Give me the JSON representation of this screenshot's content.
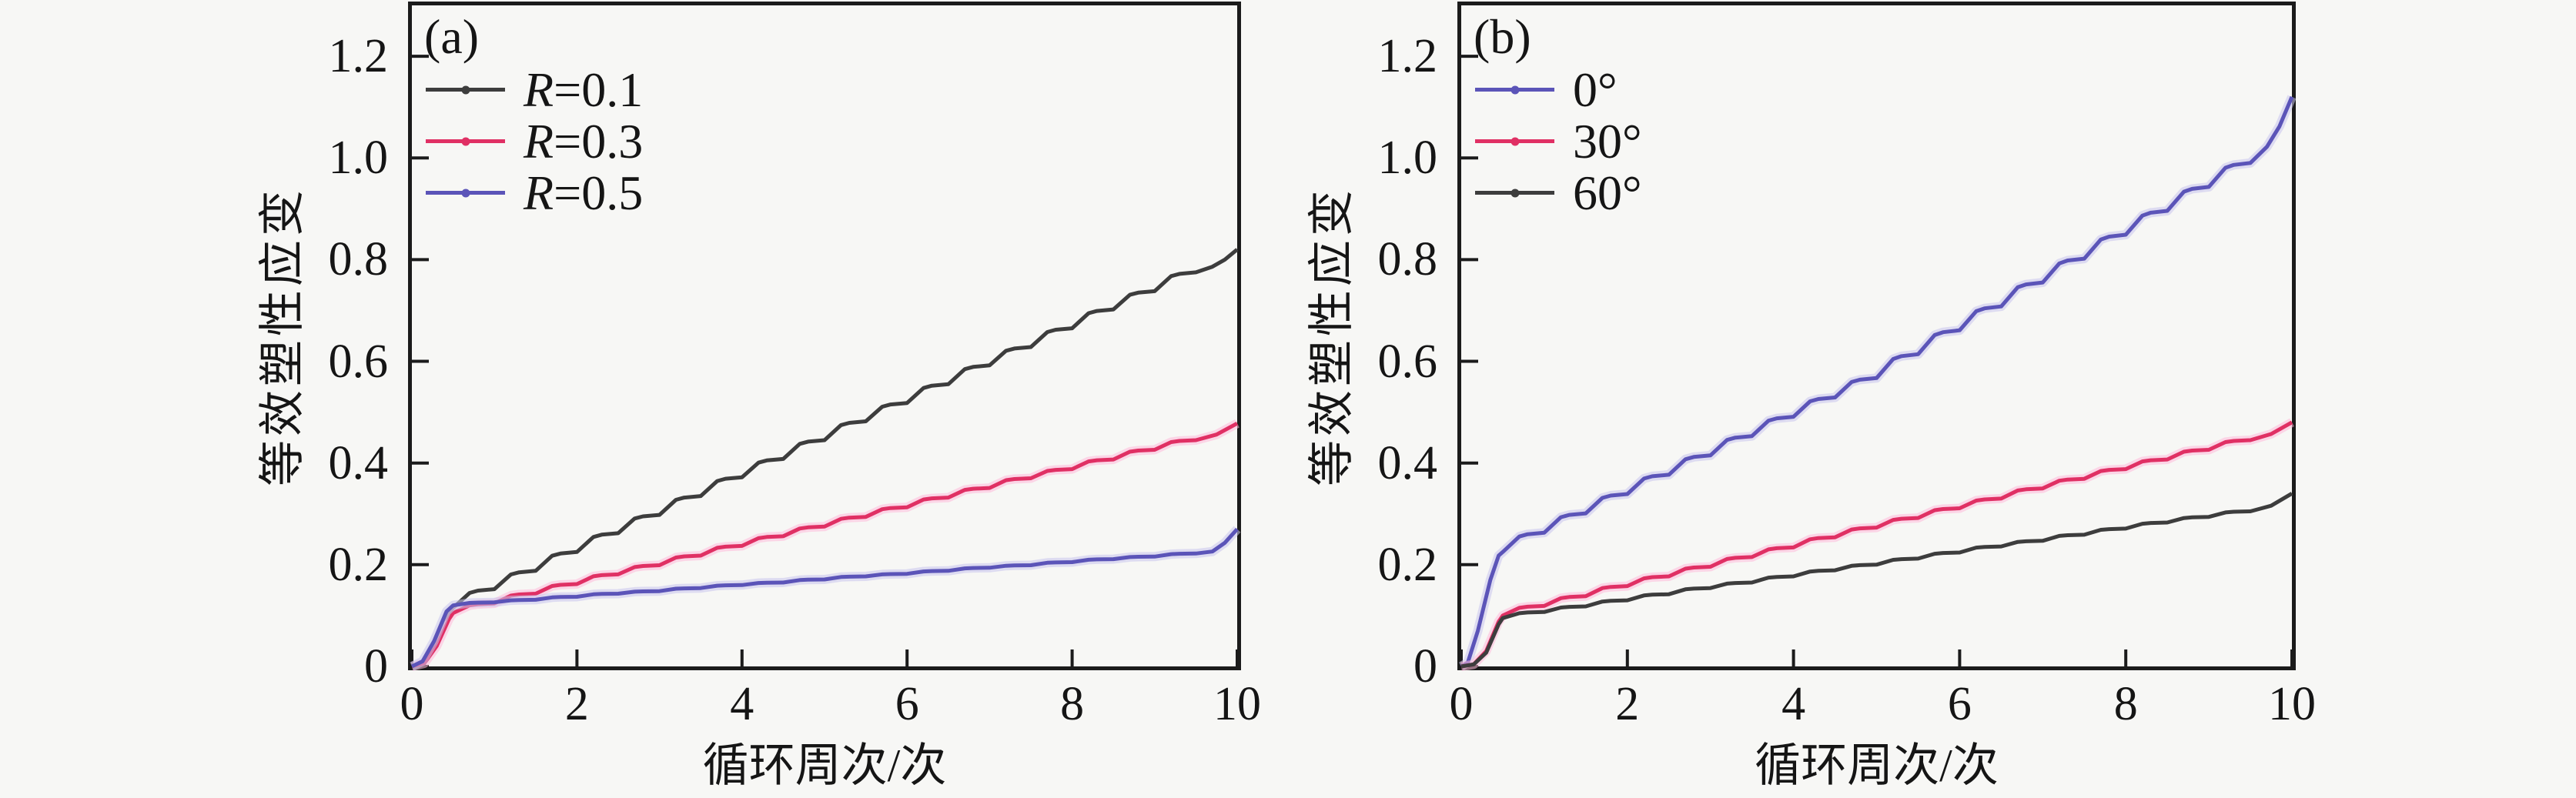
{
  "figure": {
    "background": "#f7f7f5",
    "text_color": "#151515"
  },
  "chart_data": [
    {
      "id": "a",
      "type": "line",
      "panel_label": "(a)",
      "xlabel": "循环周次/次",
      "ylabel": "等效塑性应变",
      "xlim": [
        0,
        10
      ],
      "ylim": [
        0,
        1.3
      ],
      "xticks": [
        0,
        2,
        4,
        6,
        8,
        10
      ],
      "ytick_values": [
        0,
        0.2,
        0.4,
        0.6,
        0.8,
        1.0,
        1.2
      ],
      "ytick_labels": [
        "0",
        "0.2",
        "0.4",
        "0.6",
        "0.8",
        "1.0",
        "1.2"
      ],
      "axis_color": "#1b1b1b",
      "tick_length": 22,
      "legend_position": "upper-left",
      "grid": false,
      "series": [
        {
          "name": "R=0.1",
          "legend": {
            "var": "R",
            "rest": "=0.1"
          },
          "color": "#3d3d3d",
          "halo": "",
          "rise": [
            [
              0,
              0
            ],
            [
              0.12,
              0.008
            ],
            [
              0.25,
              0.04
            ],
            [
              0.38,
              0.09
            ],
            [
              0.5,
              0.115
            ]
          ],
          "anchors": [
            [
              0.5,
              0.115
            ],
            [
              1,
              0.152
            ],
            [
              1.5,
              0.188
            ],
            [
              2,
              0.225
            ],
            [
              2.5,
              0.262
            ],
            [
              3,
              0.298
            ],
            [
              3.5,
              0.335
            ],
            [
              4,
              0.372
            ],
            [
              4.5,
              0.408
            ],
            [
              5,
              0.445
            ],
            [
              5.5,
              0.482
            ],
            [
              6,
              0.518
            ],
            [
              6.5,
              0.555
            ],
            [
              7,
              0.592
            ],
            [
              7.5,
              0.628
            ],
            [
              8,
              0.665
            ],
            [
              8.5,
              0.702
            ],
            [
              9,
              0.738
            ],
            [
              9.5,
              0.775
            ]
          ],
          "final": [
            [
              9.7,
              0.786
            ],
            [
              9.85,
              0.8
            ],
            [
              10,
              0.82
            ]
          ]
        },
        {
          "name": "R=0.3",
          "legend": {
            "var": "R",
            "rest": "=0.3"
          },
          "color": "#e03064",
          "halo": "#ffb9d8",
          "rise": [
            [
              0,
              0
            ],
            [
              0.15,
              0.006
            ],
            [
              0.3,
              0.04
            ],
            [
              0.45,
              0.093
            ],
            [
              0.5,
              0.105
            ]
          ],
          "anchors": [
            [
              0.5,
              0.105
            ],
            [
              1,
              0.124
            ],
            [
              1.5,
              0.143
            ],
            [
              2,
              0.162
            ],
            [
              2.5,
              0.181
            ],
            [
              3,
              0.199
            ],
            [
              3.5,
              0.218
            ],
            [
              4,
              0.237
            ],
            [
              4.5,
              0.256
            ],
            [
              5,
              0.275
            ],
            [
              5.5,
              0.294
            ],
            [
              6,
              0.313
            ],
            [
              6.5,
              0.332
            ],
            [
              7,
              0.351
            ],
            [
              7.5,
              0.37
            ],
            [
              8,
              0.388
            ],
            [
              8.5,
              0.407
            ],
            [
              9,
              0.426
            ],
            [
              9.5,
              0.445
            ]
          ],
          "final": [
            [
              9.75,
              0.456
            ],
            [
              10,
              0.478
            ]
          ]
        },
        {
          "name": "R=0.5",
          "legend": {
            "var": "R",
            "rest": "=0.5"
          },
          "color": "#5b54b8",
          "halo": "#c9c5ec",
          "rise": [
            [
              0,
              0
            ],
            [
              0.13,
              0.01
            ],
            [
              0.27,
              0.05
            ],
            [
              0.42,
              0.108
            ],
            [
              0.5,
              0.12
            ]
          ],
          "anchors": [
            [
              0.5,
              0.12
            ],
            [
              1,
              0.126
            ],
            [
              1.5,
              0.131
            ],
            [
              2,
              0.137
            ],
            [
              2.5,
              0.143
            ],
            [
              3,
              0.148
            ],
            [
              3.5,
              0.154
            ],
            [
              4,
              0.16
            ],
            [
              4.5,
              0.165
            ],
            [
              5,
              0.171
            ],
            [
              5.5,
              0.177
            ],
            [
              6,
              0.182
            ],
            [
              6.5,
              0.188
            ],
            [
              7,
              0.194
            ],
            [
              7.5,
              0.199
            ],
            [
              8,
              0.205
            ],
            [
              8.5,
              0.211
            ],
            [
              9,
              0.216
            ],
            [
              9.5,
              0.222
            ]
          ],
          "final": [
            [
              9.7,
              0.226
            ],
            [
              9.85,
              0.243
            ],
            [
              10,
              0.27
            ]
          ]
        }
      ]
    },
    {
      "id": "b",
      "type": "line",
      "panel_label": "(b)",
      "xlabel": "循环周次/次",
      "ylabel": "等效塑性应变",
      "xlim": [
        0,
        10
      ],
      "ylim": [
        0,
        1.3
      ],
      "xticks": [
        0,
        2,
        4,
        6,
        8,
        10
      ],
      "ytick_values": [
        0,
        0.2,
        0.4,
        0.6,
        0.8,
        1.0,
        1.2
      ],
      "ytick_labels": [
        "0",
        "0.2",
        "0.4",
        "0.6",
        "0.8",
        "1.0",
        "1.2"
      ],
      "axis_color": "#1b1b1b",
      "tick_length": 22,
      "legend_position": "upper-left",
      "grid": false,
      "series": [
        {
          "name": "0°",
          "legend": {
            "var": "",
            "rest": "0°"
          },
          "color": "#5b54b8",
          "halo": "#c9c5ec",
          "rise": [
            [
              0,
              0
            ],
            [
              0.08,
              0.008
            ],
            [
              0.2,
              0.07
            ],
            [
              0.35,
              0.17
            ],
            [
              0.45,
              0.218
            ],
            [
              0.5,
              0.225
            ]
          ],
          "anchors": [
            [
              0.5,
              0.225
            ],
            [
              1,
              0.263
            ],
            [
              1.5,
              0.301
            ],
            [
              2,
              0.339
            ],
            [
              2.5,
              0.377
            ],
            [
              3,
              0.415
            ],
            [
              3.5,
              0.453
            ],
            [
              4,
              0.491
            ],
            [
              4.5,
              0.529
            ],
            [
              5,
              0.567
            ],
            [
              5.5,
              0.614
            ],
            [
              6,
              0.661
            ],
            [
              6.5,
              0.708
            ],
            [
              7,
              0.755
            ],
            [
              7.5,
              0.802
            ],
            [
              8,
              0.849
            ],
            [
              8.5,
              0.896
            ],
            [
              9,
              0.943
            ],
            [
              9.5,
              0.99
            ]
          ],
          "final": [
            [
              9.7,
              1.022
            ],
            [
              9.85,
              1.062
            ],
            [
              10,
              1.12
            ]
          ]
        },
        {
          "name": "30°",
          "legend": {
            "var": "",
            "rest": "30°"
          },
          "color": "#e03064",
          "halo": "#ffb9d8",
          "rise": [
            [
              0,
              0
            ],
            [
              0.15,
              0.004
            ],
            [
              0.3,
              0.03
            ],
            [
              0.45,
              0.088
            ],
            [
              0.5,
              0.1
            ]
          ],
          "anchors": [
            [
              0.5,
              0.1
            ],
            [
              1,
              0.119
            ],
            [
              1.5,
              0.138
            ],
            [
              2,
              0.158
            ],
            [
              2.5,
              0.177
            ],
            [
              3,
              0.196
            ],
            [
              3.5,
              0.215
            ],
            [
              4,
              0.234
            ],
            [
              4.5,
              0.254
            ],
            [
              5,
              0.273
            ],
            [
              5.5,
              0.292
            ],
            [
              6,
              0.311
            ],
            [
              6.5,
              0.33
            ],
            [
              7,
              0.35
            ],
            [
              7.5,
              0.369
            ],
            [
              8,
              0.388
            ],
            [
              8.5,
              0.407
            ],
            [
              9,
              0.426
            ],
            [
              9.5,
              0.445
            ]
          ],
          "final": [
            [
              9.75,
              0.457
            ],
            [
              10,
              0.48
            ]
          ]
        },
        {
          "name": "60°",
          "legend": {
            "var": "",
            "rest": "60°"
          },
          "color": "#3d3d3d",
          "halo": "",
          "rise": [
            [
              0,
              0
            ],
            [
              0.15,
              0.004
            ],
            [
              0.3,
              0.027
            ],
            [
              0.45,
              0.083
            ],
            [
              0.5,
              0.095
            ]
          ],
          "anchors": [
            [
              0.5,
              0.095
            ],
            [
              1,
              0.107
            ],
            [
              1.5,
              0.118
            ],
            [
              2,
              0.13
            ],
            [
              2.5,
              0.142
            ],
            [
              3,
              0.154
            ],
            [
              3.5,
              0.165
            ],
            [
              4,
              0.177
            ],
            [
              4.5,
              0.189
            ],
            [
              5,
              0.2
            ],
            [
              5.5,
              0.212
            ],
            [
              6,
              0.224
            ],
            [
              6.5,
              0.236
            ],
            [
              7,
              0.247
            ],
            [
              7.5,
              0.259
            ],
            [
              8,
              0.271
            ],
            [
              8.5,
              0.283
            ],
            [
              9,
              0.294
            ],
            [
              9.5,
              0.305
            ]
          ],
          "final": [
            [
              9.75,
              0.316
            ],
            [
              10,
              0.34
            ]
          ]
        }
      ]
    }
  ]
}
